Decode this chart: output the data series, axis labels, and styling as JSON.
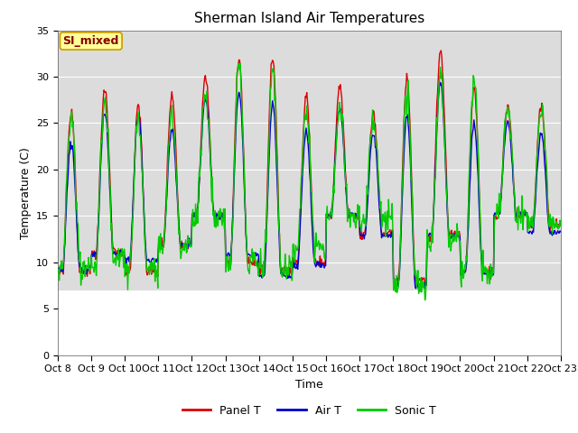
{
  "title": "Sherman Island Air Temperatures",
  "xlabel": "Time",
  "ylabel": "Temperature (C)",
  "xlim": [
    0,
    360
  ],
  "ylim": [
    0,
    35
  ],
  "yticks": [
    0,
    5,
    10,
    15,
    20,
    25,
    30,
    35
  ],
  "xtick_labels": [
    "Oct 8",
    "Oct 9",
    "Oct 10",
    "Oct 11",
    "Oct 12",
    "Oct 13",
    "Oct 14",
    "Oct 15",
    "Oct 16",
    "Oct 17",
    "Oct 18",
    "Oct 19",
    "Oct 20",
    "Oct 21",
    "Oct 22",
    "Oct 23"
  ],
  "series_colors": {
    "panel": "#dd0000",
    "air": "#0000cc",
    "sonic": "#00cc00"
  },
  "legend_label_box": "SI_mixed",
  "legend_box_facecolor": "#ffff99",
  "legend_box_edgecolor": "#cc9900",
  "legend_box_textcolor": "#880000",
  "bg_band_color": "#dcdcdc",
  "title_fontsize": 11,
  "axis_label_fontsize": 9,
  "tick_fontsize": 8,
  "legend_fontsize": 9,
  "line_width": 1.0,
  "figsize": [
    6.4,
    4.8
  ],
  "dpi": 100
}
